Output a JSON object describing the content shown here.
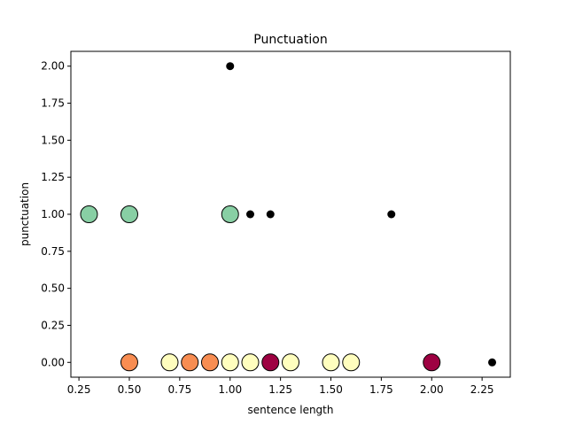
{
  "chart_data": {
    "type": "scatter",
    "title": "Punctuation",
    "xlabel": "sentence length",
    "ylabel": "punctuation",
    "xlim": [
      0.21,
      2.39
    ],
    "ylim": [
      -0.1,
      2.1
    ],
    "xticks": [
      0.25,
      0.5,
      0.75,
      1.0,
      1.25,
      1.5,
      1.75,
      2.0,
      2.25
    ],
    "xtick_labels": [
      "0.25",
      "0.50",
      "0.75",
      "1.00",
      "1.25",
      "1.50",
      "1.75",
      "2.00",
      "2.25"
    ],
    "yticks": [
      0.0,
      0.25,
      0.5,
      0.75,
      1.0,
      1.25,
      1.5,
      1.75,
      2.0
    ],
    "ytick_labels": [
      "0.00",
      "0.25",
      "0.50",
      "0.75",
      "1.00",
      "1.25",
      "1.50",
      "1.75",
      "2.00"
    ],
    "grid": false,
    "series": [
      {
        "marker": "large-circle",
        "points": [
          {
            "x": 0.3,
            "y": 1.0,
            "color": "#88cfa4"
          },
          {
            "x": 0.5,
            "y": 1.0,
            "color": "#88cfa4"
          },
          {
            "x": 1.0,
            "y": 1.0,
            "color": "#88cfa4"
          },
          {
            "x": 0.5,
            "y": 0.0,
            "color": "#f88d52"
          },
          {
            "x": 0.7,
            "y": 0.0,
            "color": "#fffebe"
          },
          {
            "x": 0.8,
            "y": 0.0,
            "color": "#f88d52"
          },
          {
            "x": 0.9,
            "y": 0.0,
            "color": "#f88d52"
          },
          {
            "x": 1.0,
            "y": 0.0,
            "color": "#fffebe"
          },
          {
            "x": 1.1,
            "y": 0.0,
            "color": "#fffebe"
          },
          {
            "x": 1.2,
            "y": 0.0,
            "color": "#9e0142"
          },
          {
            "x": 1.3,
            "y": 0.0,
            "color": "#fffebe"
          },
          {
            "x": 1.5,
            "y": 0.0,
            "color": "#fffebe"
          },
          {
            "x": 1.6,
            "y": 0.0,
            "color": "#fffebe"
          },
          {
            "x": 2.0,
            "y": 0.0,
            "color": "#9e0142"
          }
        ]
      },
      {
        "marker": "small-dot",
        "color": "#000000",
        "points": [
          {
            "x": 1.0,
            "y": 2.0
          },
          {
            "x": 1.1,
            "y": 1.0
          },
          {
            "x": 1.2,
            "y": 1.0
          },
          {
            "x": 1.8,
            "y": 1.0
          },
          {
            "x": 2.3,
            "y": 0.0
          }
        ]
      }
    ]
  }
}
